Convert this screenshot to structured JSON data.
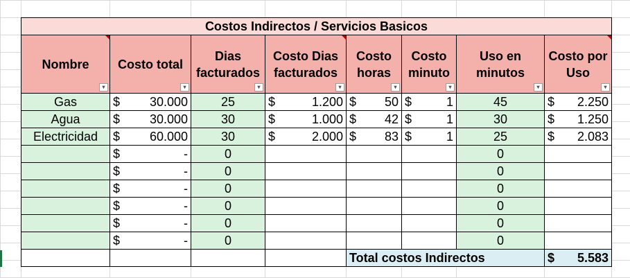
{
  "title": "Costos Indirectos / Servicios Basicos",
  "headers": [
    "Nombre",
    "Costo total",
    "Dias facturados",
    "Costo Dias facturados",
    "Costo horas",
    "Costo minuto",
    "Uso en minutos",
    "Costo por Uso"
  ],
  "currency": "$",
  "dash": "-",
  "filter_glyph": "▾",
  "rows": [
    {
      "nombre": "Gas",
      "costo_total": "30.000",
      "dias": "25",
      "costo_dias": "1.200",
      "costo_horas": "50",
      "costo_minuto": "1",
      "uso": "45",
      "costo_uso": "2.250"
    },
    {
      "nombre": "Agua",
      "costo_total": "30.000",
      "dias": "30",
      "costo_dias": "1.000",
      "costo_horas": "42",
      "costo_minuto": "1",
      "uso": "30",
      "costo_uso": "1.250"
    },
    {
      "nombre": "Electricidad",
      "costo_total": "60.000",
      "dias": "30",
      "costo_dias": "2.000",
      "costo_horas": "83",
      "costo_minuto": "1",
      "uso": "25",
      "costo_uso": "2.083"
    },
    {
      "nombre": "",
      "costo_total": "-",
      "dias": "0",
      "costo_dias": "",
      "costo_horas": "",
      "costo_minuto": "",
      "uso": "0",
      "costo_uso": ""
    },
    {
      "nombre": "",
      "costo_total": "-",
      "dias": "0",
      "costo_dias": "",
      "costo_horas": "",
      "costo_minuto": "",
      "uso": "0",
      "costo_uso": ""
    },
    {
      "nombre": "",
      "costo_total": "-",
      "dias": "0",
      "costo_dias": "",
      "costo_horas": "",
      "costo_minuto": "",
      "uso": "0",
      "costo_uso": ""
    },
    {
      "nombre": "",
      "costo_total": "-",
      "dias": "0",
      "costo_dias": "",
      "costo_horas": "",
      "costo_minuto": "",
      "uso": "0",
      "costo_uso": ""
    },
    {
      "nombre": "",
      "costo_total": "-",
      "dias": "0",
      "costo_dias": "",
      "costo_horas": "",
      "costo_minuto": "",
      "uso": "0",
      "costo_uso": ""
    },
    {
      "nombre": "",
      "costo_total": "-",
      "dias": "0",
      "costo_dias": "",
      "costo_horas": "",
      "costo_minuto": "",
      "uso": "0",
      "costo_uso": ""
    }
  ],
  "total": {
    "label": "Total costos Indirectos",
    "value": "5.583"
  },
  "colors": {
    "title_bg": "#fadbd8",
    "header_bg": "#f4b0aa",
    "green_bg": "#d9f2de",
    "total_bg": "#daeef3",
    "comment_marker": "#c00000"
  }
}
